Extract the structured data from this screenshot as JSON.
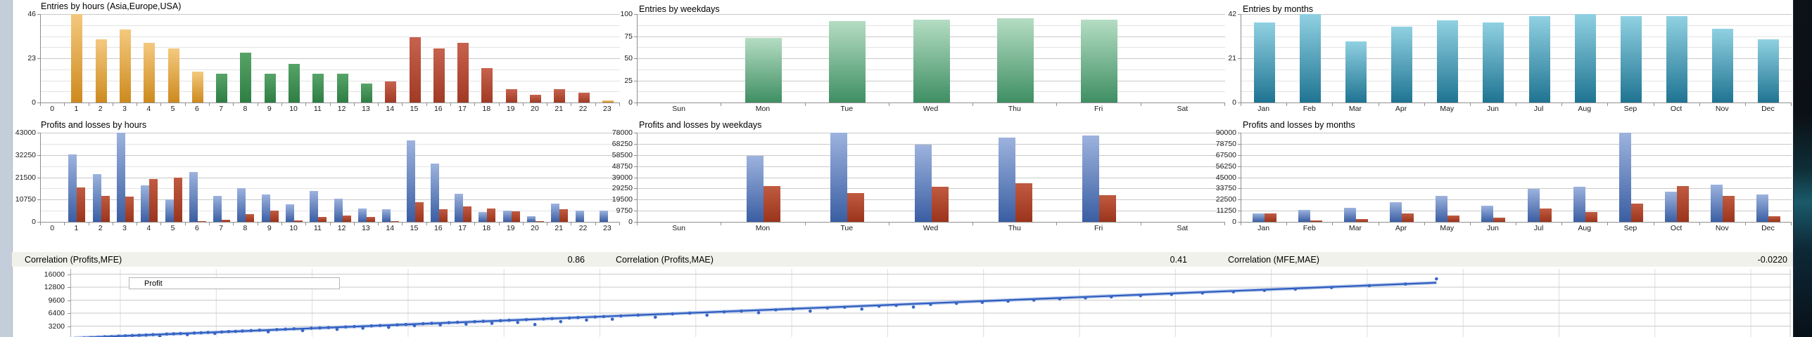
{
  "correlations": [
    {
      "label": "Correlation (Profits,MFE)",
      "value": "0.86"
    },
    {
      "label": "Correlation (Profits,MAE)",
      "value": "0.41"
    },
    {
      "label": "Correlation (MFE,MAE)",
      "value": "-0.0220"
    }
  ],
  "chart_data": [
    {
      "type": "bar",
      "title": "Entries by hours (Asia,Europe,USA)",
      "categories": [
        "0",
        "1",
        "2",
        "3",
        "4",
        "5",
        "6",
        "7",
        "8",
        "9",
        "10",
        "11",
        "12",
        "13",
        "14",
        "15",
        "16",
        "17",
        "18",
        "19",
        "20",
        "21",
        "22",
        "23"
      ],
      "values": [
        0,
        46,
        33,
        38,
        31,
        28,
        16,
        15,
        26,
        15,
        20,
        15,
        15,
        10,
        11,
        34,
        28,
        31,
        18,
        7,
        4,
        7,
        5,
        1
      ],
      "bar_groups": [
        "none",
        "asia",
        "asia",
        "asia",
        "asia",
        "asia",
        "asia",
        "europe",
        "europe",
        "europe",
        "europe",
        "europe",
        "europe",
        "europe",
        "usa",
        "usa",
        "usa",
        "usa",
        "usa",
        "usa",
        "usa",
        "usa",
        "usa",
        "asia"
      ],
      "palette": {
        "asia": [
          "#f4c97e",
          "#cd8a1e"
        ],
        "europe": [
          "#57a468",
          "#2e7d43"
        ],
        "usa": [
          "#c7624e",
          "#a03a24"
        ]
      },
      "ylim": [
        0,
        46
      ],
      "yticks": [
        46,
        23,
        0
      ],
      "grid_divisions": 8
    },
    {
      "type": "bar",
      "title": "Entries by weekdays",
      "categories": [
        "Sun",
        "Mon",
        "Tue",
        "Wed",
        "Thu",
        "Fri",
        "Sat"
      ],
      "values": [
        0,
        73,
        92,
        94,
        95,
        94,
        0
      ],
      "color": [
        "#b5ddc3",
        "#3f8f63"
      ],
      "ylim": [
        0,
        100
      ],
      "yticks": [
        100,
        75,
        50,
        25,
        0
      ],
      "grid_divisions": 8
    },
    {
      "type": "bar",
      "title": "Entries by months",
      "categories": [
        "Jan",
        "Feb",
        "Mar",
        "Apr",
        "May",
        "Jun",
        "Jul",
        "Aug",
        "Sep",
        "Oct",
        "Nov",
        "Dec"
      ],
      "values": [
        38,
        42,
        29,
        36,
        39,
        38,
        41,
        42,
        41,
        41,
        35,
        30
      ],
      "color": [
        "#90d1e2",
        "#1f7492"
      ],
      "ylim": [
        0,
        42
      ],
      "yticks": [
        42,
        21,
        0
      ],
      "grid_divisions": 8
    },
    {
      "type": "bar",
      "title": "Profits and losses by hours",
      "categories": [
        "0",
        "1",
        "2",
        "3",
        "4",
        "5",
        "6",
        "7",
        "8",
        "9",
        "10",
        "11",
        "12",
        "13",
        "14",
        "15",
        "16",
        "17",
        "18",
        "19",
        "20",
        "21",
        "22",
        "23"
      ],
      "series": [
        {
          "name": "profit",
          "values": [
            0,
            32500,
            23000,
            43000,
            17500,
            11000,
            24000,
            12700,
            16400,
            13300,
            8500,
            14800,
            11200,
            6500,
            6000,
            39400,
            28000,
            13500,
            4900,
            5300,
            2600,
            8800,
            5500,
            5500
          ]
        },
        {
          "name": "loss",
          "values": [
            0,
            16600,
            12700,
            12200,
            20800,
            21500,
            400,
            900,
            3700,
            5400,
            700,
            2300,
            2900,
            2500,
            500,
            9400,
            6100,
            7300,
            6300,
            5100,
            400,
            6200,
            0,
            0
          ]
        }
      ],
      "colors": {
        "profit": [
          "#9db3de",
          "#3a5ea3"
        ],
        "loss": [
          "#c05b41",
          "#9a341c"
        ]
      },
      "ylim": [
        0,
        43000
      ],
      "yticks": [
        43000,
        32250,
        21500,
        10750,
        0
      ],
      "grid_divisions": 8
    },
    {
      "type": "bar",
      "title": "Profits and losses by weekdays",
      "categories": [
        "Sun",
        "Mon",
        "Tue",
        "Wed",
        "Thu",
        "Fri",
        "Sat"
      ],
      "series": [
        {
          "name": "profit",
          "values": [
            0,
            58000,
            78000,
            67500,
            73500,
            75500,
            0
          ]
        },
        {
          "name": "loss",
          "values": [
            0,
            31500,
            25000,
            30500,
            33500,
            23500,
            0
          ]
        }
      ],
      "colors": {
        "profit": [
          "#9db3de",
          "#3a5ea3"
        ],
        "loss": [
          "#c05b41",
          "#9a341c"
        ]
      },
      "ylim": [
        0,
        78000
      ],
      "yticks": [
        78000,
        68250,
        58500,
        48750,
        39000,
        29250,
        19500,
        9750,
        0
      ],
      "grid_divisions": 8
    },
    {
      "type": "bar",
      "title": "Profits and losses by months",
      "categories": [
        "Jan",
        "Feb",
        "Mar",
        "Apr",
        "May",
        "Jun",
        "Jul",
        "Aug",
        "Sep",
        "Oct",
        "Nov",
        "Dec"
      ],
      "series": [
        {
          "name": "profit",
          "values": [
            8300,
            11800,
            14200,
            20100,
            26500,
            16600,
            33200,
            35100,
            90000,
            30300,
            37900,
            27700
          ]
        },
        {
          "name": "loss",
          "values": [
            8300,
            1700,
            2800,
            8300,
            6600,
            4300,
            13500,
            10000,
            18500,
            36300,
            26100,
            5900
          ]
        }
      ],
      "colors": {
        "profit": [
          "#9db3de",
          "#3a5ea3"
        ],
        "loss": [
          "#c05b41",
          "#9a341c"
        ]
      },
      "ylim": [
        0,
        90000
      ],
      "yticks": [
        90000,
        78750,
        67500,
        56250,
        45000,
        33750,
        22500,
        11250,
        0
      ],
      "grid_divisions": 8
    },
    {
      "type": "scatter",
      "legend": "Profit",
      "yticks": [
        16000,
        12800,
        9600,
        6400,
        3200
      ],
      "ylim": [
        0,
        16800
      ],
      "x_axis_note": "x tick labels cut off at bottom edge of screenshot; x given as fraction of plot width",
      "point_color": "#3766c8",
      "trendline": {
        "start": [
          0.002,
          280
        ],
        "end": [
          0.794,
          13900
        ]
      },
      "points": [
        [
          0.004,
          150
        ],
        [
          0.008,
          280
        ],
        [
          0.012,
          350
        ],
        [
          0.016,
          420
        ],
        [
          0.02,
          560
        ],
        [
          0.024,
          600
        ],
        [
          0.028,
          720
        ],
        [
          0.032,
          800
        ],
        [
          0.036,
          880
        ],
        [
          0.04,
          950
        ],
        [
          0.044,
          1000
        ],
        [
          0.048,
          1100
        ],
        [
          0.052,
          600
        ],
        [
          0.056,
          1250
        ],
        [
          0.06,
          1300
        ],
        [
          0.064,
          1380
        ],
        [
          0.068,
          1100
        ],
        [
          0.072,
          1500
        ],
        [
          0.076,
          1550
        ],
        [
          0.08,
          1650
        ],
        [
          0.084,
          1400
        ],
        [
          0.088,
          1750
        ],
        [
          0.092,
          1850
        ],
        [
          0.096,
          1900
        ],
        [
          0.1,
          2000
        ],
        [
          0.105,
          2100
        ],
        [
          0.11,
          2200
        ],
        [
          0.115,
          1800
        ],
        [
          0.12,
          2350
        ],
        [
          0.125,
          2450
        ],
        [
          0.13,
          2550
        ],
        [
          0.135,
          2100
        ],
        [
          0.14,
          2700
        ],
        [
          0.145,
          2750
        ],
        [
          0.15,
          2850
        ],
        [
          0.155,
          2400
        ],
        [
          0.16,
          3000
        ],
        [
          0.165,
          3100
        ],
        [
          0.17,
          2700
        ],
        [
          0.175,
          3250
        ],
        [
          0.18,
          3350
        ],
        [
          0.185,
          2900
        ],
        [
          0.19,
          3500
        ],
        [
          0.195,
          3600
        ],
        [
          0.2,
          3300
        ],
        [
          0.205,
          3800
        ],
        [
          0.21,
          3900
        ],
        [
          0.215,
          3500
        ],
        [
          0.22,
          4050
        ],
        [
          0.225,
          4150
        ],
        [
          0.23,
          3700
        ],
        [
          0.235,
          4300
        ],
        [
          0.24,
          4400
        ],
        [
          0.245,
          3900
        ],
        [
          0.25,
          4550
        ],
        [
          0.255,
          4650
        ],
        [
          0.26,
          4100
        ],
        [
          0.265,
          4800
        ],
        [
          0.27,
          3600
        ],
        [
          0.275,
          4950
        ],
        [
          0.28,
          5050
        ],
        [
          0.285,
          4300
        ],
        [
          0.29,
          5200
        ],
        [
          0.295,
          5300
        ],
        [
          0.3,
          4700
        ],
        [
          0.305,
          5450
        ],
        [
          0.31,
          5550
        ],
        [
          0.315,
          4900
        ],
        [
          0.32,
          5700
        ],
        [
          0.33,
          5900
        ],
        [
          0.34,
          5400
        ],
        [
          0.35,
          6200
        ],
        [
          0.36,
          6400
        ],
        [
          0.37,
          5900
        ],
        [
          0.38,
          6700
        ],
        [
          0.39,
          6900
        ],
        [
          0.4,
          6500
        ],
        [
          0.41,
          7200
        ],
        [
          0.42,
          7400
        ],
        [
          0.43,
          6900
        ],
        [
          0.44,
          7650
        ],
        [
          0.45,
          7850
        ],
        [
          0.46,
          7400
        ],
        [
          0.47,
          8100
        ],
        [
          0.48,
          8300
        ],
        [
          0.49,
          7900
        ],
        [
          0.5,
          8550
        ],
        [
          0.515,
          8800
        ],
        [
          0.53,
          9050
        ],
        [
          0.545,
          9350
        ],
        [
          0.56,
          9600
        ],
        [
          0.575,
          9900
        ],
        [
          0.59,
          10150
        ],
        [
          0.605,
          10400
        ],
        [
          0.622,
          10700
        ],
        [
          0.64,
          11000
        ],
        [
          0.658,
          11350
        ],
        [
          0.676,
          11650
        ],
        [
          0.694,
          12000
        ],
        [
          0.712,
          12300
        ],
        [
          0.733,
          12700
        ],
        [
          0.755,
          13150
        ],
        [
          0.776,
          13550
        ],
        [
          0.794,
          14850
        ]
      ]
    }
  ]
}
